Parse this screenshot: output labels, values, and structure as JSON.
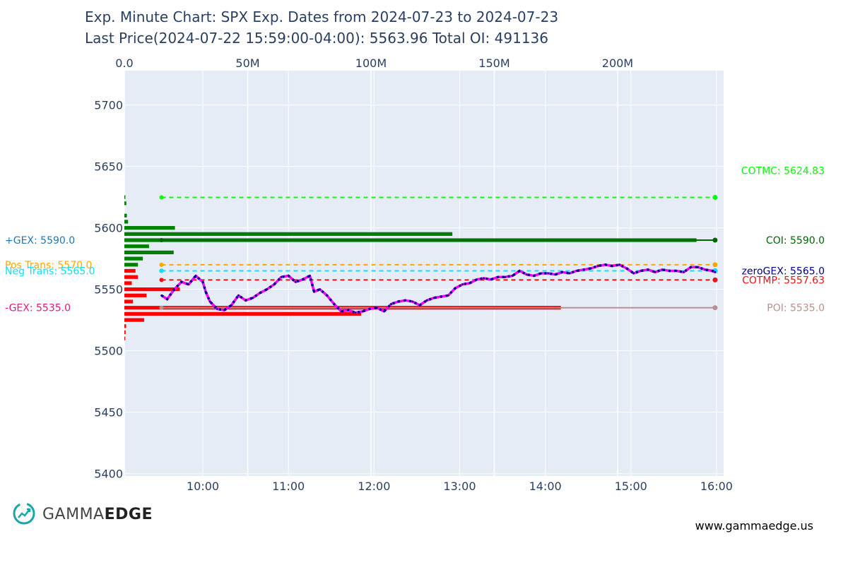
{
  "title": {
    "line1": "Exp. Minute Chart: SPX  Exp. Dates from 2024-07-23 to 2024-07-23",
    "line2": "Last Price(2024-07-22 15:59:00-04:00): 5563.96 Total OI: 491136"
  },
  "brand": {
    "gamma": "GAMMA",
    "edge": "EDGE",
    "website": "www.gammaedge.us",
    "accent": "#1aa6a6"
  },
  "chart_data": {
    "type": "line",
    "xlabel": "",
    "ylabel": "",
    "y_range": [
      5398,
      5728
    ],
    "y_ticks": [
      5400,
      5450,
      5500,
      5550,
      5600,
      5650,
      5700
    ],
    "x_time_range": [
      "09:05",
      "16:05"
    ],
    "x_time_ticks": [
      "10:00",
      "11:00",
      "12:00",
      "13:00",
      "14:00",
      "15:00",
      "16:00"
    ],
    "x_oi_range": [
      0,
      243000000
    ],
    "x_oi_ticks": [
      {
        "value": 0,
        "label": "0.0"
      },
      {
        "value": 50000000,
        "label": "50M"
      },
      {
        "value": 100000000,
        "label": "100M"
      },
      {
        "value": 150000000,
        "label": "150M"
      },
      {
        "value": 200000000,
        "label": "200M"
      }
    ],
    "grid": true,
    "background": "#e5ecf6",
    "price_series": {
      "name": "SPX",
      "colors": [
        "#ff00ff",
        "#00008b"
      ],
      "points": [
        [
          "09:31",
          5545
        ],
        [
          "09:35",
          5542
        ],
        [
          "09:40",
          5550
        ],
        [
          "09:45",
          5556
        ],
        [
          "09:50",
          5554
        ],
        [
          "09:55",
          5561
        ],
        [
          "10:00",
          5556
        ],
        [
          "10:02",
          5548
        ],
        [
          "10:05",
          5540
        ],
        [
          "10:10",
          5534
        ],
        [
          "10:15",
          5533
        ],
        [
          "10:20",
          5537
        ],
        [
          "10:25",
          5545
        ],
        [
          "10:30",
          5541
        ],
        [
          "10:35",
          5543
        ],
        [
          "10:40",
          5547
        ],
        [
          "10:45",
          5550
        ],
        [
          "10:50",
          5554
        ],
        [
          "10:55",
          5560
        ],
        [
          "11:00",
          5561
        ],
        [
          "11:05",
          5556
        ],
        [
          "11:10",
          5558
        ],
        [
          "11:15",
          5561
        ],
        [
          "11:18",
          5548
        ],
        [
          "11:22",
          5550
        ],
        [
          "11:27",
          5545
        ],
        [
          "11:32",
          5538
        ],
        [
          "11:37",
          5532
        ],
        [
          "11:42",
          5533
        ],
        [
          "11:47",
          5531
        ],
        [
          "11:52",
          5532
        ],
        [
          "11:57",
          5534
        ],
        [
          "12:02",
          5535
        ],
        [
          "12:07",
          5532
        ],
        [
          "12:12",
          5538
        ],
        [
          "12:17",
          5540
        ],
        [
          "12:22",
          5541
        ],
        [
          "12:27",
          5540
        ],
        [
          "12:32",
          5537
        ],
        [
          "12:37",
          5541
        ],
        [
          "12:42",
          5543
        ],
        [
          "12:47",
          5544
        ],
        [
          "12:52",
          5545
        ],
        [
          "12:57",
          5551
        ],
        [
          "13:02",
          5554
        ],
        [
          "13:07",
          5555
        ],
        [
          "13:12",
          5558
        ],
        [
          "13:17",
          5559
        ],
        [
          "13:22",
          5558
        ],
        [
          "13:27",
          5560
        ],
        [
          "13:32",
          5560
        ],
        [
          "13:37",
          5561
        ],
        [
          "13:42",
          5565
        ],
        [
          "13:47",
          5562
        ],
        [
          "13:52",
          5561
        ],
        [
          "13:57",
          5563
        ],
        [
          "14:02",
          5563
        ],
        [
          "14:07",
          5562
        ],
        [
          "14:12",
          5564
        ],
        [
          "14:17",
          5563
        ],
        [
          "14:22",
          5565
        ],
        [
          "14:27",
          5566
        ],
        [
          "14:32",
          5567
        ],
        [
          "14:37",
          5569
        ],
        [
          "14:42",
          5570
        ],
        [
          "14:47",
          5569
        ],
        [
          "14:52",
          5570
        ],
        [
          "14:57",
          5567
        ],
        [
          "15:02",
          5563
        ],
        [
          "15:07",
          5565
        ],
        [
          "15:12",
          5566
        ],
        [
          "15:17",
          5564
        ],
        [
          "15:22",
          5566
        ],
        [
          "15:27",
          5565
        ],
        [
          "15:32",
          5565
        ],
        [
          "15:37",
          5564
        ],
        [
          "15:42",
          5568
        ],
        [
          "15:47",
          5568
        ],
        [
          "15:52",
          5566
        ],
        [
          "15:57",
          5565
        ],
        [
          "15:59",
          5563.96
        ]
      ]
    },
    "levels": [
      {
        "name": "COTMC",
        "value": 5624.83,
        "color": "#00ff00",
        "label": "COTMC: 5624.83",
        "dashed": true,
        "start": "09:31",
        "end": "15:59"
      },
      {
        "name": "COI",
        "value": 5590.0,
        "color": "#006400",
        "label": "COI: 5590.0",
        "dashed": false,
        "start": "09:31",
        "end": "15:59"
      },
      {
        "name": "zeroGEX",
        "value": 5565.0,
        "color": "#00008b",
        "label": "zeroGEX: 5565.0",
        "dashed": true,
        "start": "09:31",
        "end": "15:59"
      },
      {
        "name": "COTMP",
        "value": 5557.63,
        "color": "#ee1111",
        "label": "COTMP: 5557.63",
        "dashed": true,
        "start": "09:31",
        "end": "15:59"
      },
      {
        "name": "POI",
        "value": 5535.0,
        "color": "#bc8f8f",
        "label": "POI: 5535.0",
        "dashed": false,
        "start": "09:31",
        "end": "15:59"
      },
      {
        "name": "PosTrans",
        "value": 5570.0,
        "color": "#ffa500",
        "dashed": true,
        "start": "09:31",
        "end": "15:59"
      },
      {
        "name": "NegTrans",
        "value": 5565.0,
        "color": "#00e5ff",
        "dashed": true,
        "start": "09:31",
        "end": "15:59"
      }
    ],
    "left_labels": [
      {
        "text": "+GEX: 5590.0",
        "value": 5590.0,
        "color": "#1f77b4"
      },
      {
        "text": "Pos Trans: 5570.0",
        "value": 5570.0,
        "color": "#ffa500"
      },
      {
        "text": "Neg Trans: 5565.0",
        "value": 5565.0,
        "color": "#00e5ff"
      },
      {
        "text": "-GEX: 5535.0",
        "value": 5535.0,
        "color": "#e0197d"
      }
    ],
    "oi_bars": {
      "call_color": "#008000",
      "put_color": "#ff0000",
      "bars": [
        {
          "strike": 5625,
          "oi": 400000,
          "side": "call"
        },
        {
          "strike": 5620,
          "oi": 800000,
          "side": "call"
        },
        {
          "strike": 5610,
          "oi": 1000000,
          "side": "call"
        },
        {
          "strike": 5605,
          "oi": 1500000,
          "side": "call"
        },
        {
          "strike": 5600,
          "oi": 20500000,
          "side": "call"
        },
        {
          "strike": 5595,
          "oi": 133000000,
          "side": "call"
        },
        {
          "strike": 5590,
          "oi": 232000000,
          "side": "call"
        },
        {
          "strike": 5585,
          "oi": 10000000,
          "side": "call"
        },
        {
          "strike": 5580,
          "oi": 20000000,
          "side": "call"
        },
        {
          "strike": 5575,
          "oi": 7500000,
          "side": "call"
        },
        {
          "strike": 5570,
          "oi": 5500000,
          "side": "call"
        },
        {
          "strike": 5565,
          "oi": 4500000,
          "side": "put"
        },
        {
          "strike": 5560,
          "oi": 5500000,
          "side": "put"
        },
        {
          "strike": 5555,
          "oi": 3000000,
          "side": "put"
        },
        {
          "strike": 5550,
          "oi": 22500000,
          "side": "put"
        },
        {
          "strike": 5545,
          "oi": 9000000,
          "side": "put"
        },
        {
          "strike": 5540,
          "oi": 3500000,
          "side": "put"
        },
        {
          "strike": 5535,
          "oi": 177000000,
          "side": "put"
        },
        {
          "strike": 5530,
          "oi": 96000000,
          "side": "put"
        },
        {
          "strike": 5525,
          "oi": 8000000,
          "side": "put"
        },
        {
          "strike": 5520,
          "oi": 700000,
          "side": "put"
        },
        {
          "strike": 5515,
          "oi": 500000,
          "side": "put"
        },
        {
          "strike": 5510,
          "oi": 300000,
          "side": "put"
        }
      ]
    }
  }
}
